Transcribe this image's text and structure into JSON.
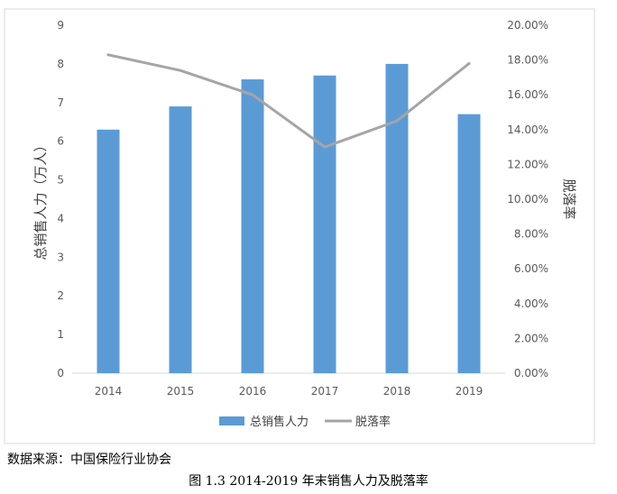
{
  "chart_data": {
    "type": "bar+line",
    "categories": [
      "2014",
      "2015",
      "2016",
      "2017",
      "2018",
      "2019"
    ],
    "series": [
      {
        "name": "总销售人力",
        "type": "bar",
        "axis": "left",
        "color": "#5b9bd5",
        "values": [
          6.3,
          6.9,
          7.6,
          7.7,
          8.0,
          6.7
        ]
      },
      {
        "name": "脱落率",
        "type": "line",
        "axis": "right",
        "color": "#a5a5a5",
        "values": [
          0.183,
          0.174,
          0.16,
          0.13,
          0.145,
          0.178
        ]
      }
    ],
    "ylabel": "总销售人力（万人）",
    "y2label": "脱落率",
    "ylim": [
      0,
      9
    ],
    "y_ticks": [
      "0",
      "1",
      "2",
      "3",
      "4",
      "5",
      "6",
      "7",
      "8",
      "9"
    ],
    "y2lim": [
      0,
      0.2
    ],
    "y2_ticks": [
      "0.00%",
      "2.00%",
      "4.00%",
      "6.00%",
      "8.00%",
      "10.00%",
      "12.00%",
      "14.00%",
      "16.00%",
      "18.00%",
      "20.00%"
    ],
    "grid": false,
    "legend_position": "bottom"
  },
  "source_note": "数据来源：中国保险行业协会",
  "caption": "图 1.3 2014-2019 年末销售人力及脱落率"
}
